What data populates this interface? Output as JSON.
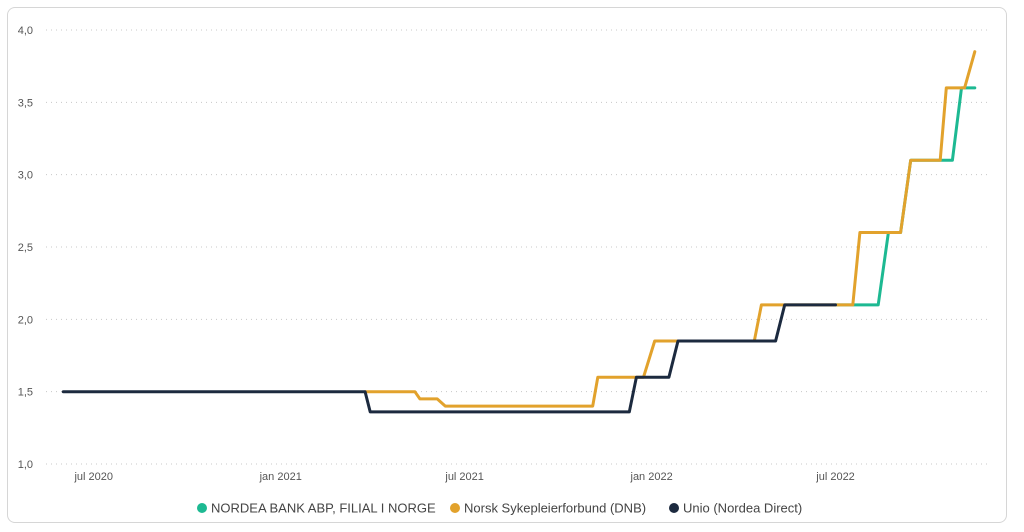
{
  "chart_data": {
    "type": "line",
    "title": "",
    "xlabel": "",
    "ylabel": "",
    "ylim": [
      1.0,
      4.0
    ],
    "yticks": [
      "1,0",
      "1,5",
      "2,0",
      "2,5",
      "3,0",
      "3,5",
      "4,0"
    ],
    "xticks": [
      "jul 2020",
      "jan 2021",
      "jul 2021",
      "jan 2022",
      "jul 2022"
    ],
    "xlim": [
      "2020-05-15",
      "2022-11-30"
    ],
    "grid": true,
    "legend_position": "bottom",
    "series": [
      {
        "name": "NORDEA BANK ABP, FILIAL I NORGE",
        "color": "#1db992",
        "points": [
          [
            "2022-07-01",
            2.1
          ],
          [
            "2022-08-12",
            2.1
          ],
          [
            "2022-08-22",
            2.6
          ],
          [
            "2022-09-03",
            2.6
          ],
          [
            "2022-09-13",
            3.1
          ],
          [
            "2022-10-24",
            3.1
          ],
          [
            "2022-11-02",
            3.6
          ],
          [
            "2022-11-15",
            3.6
          ]
        ]
      },
      {
        "name": "Norsk Sykepleierforbund (DNB)",
        "color": "#e2a22c",
        "points": [
          [
            "2021-03-25",
            1.5
          ],
          [
            "2021-05-13",
            1.5
          ],
          [
            "2021-05-18",
            1.45
          ],
          [
            "2021-06-04",
            1.45
          ],
          [
            "2021-06-12",
            1.4
          ],
          [
            "2021-11-04",
            1.4
          ],
          [
            "2021-11-09",
            1.6
          ],
          [
            "2021-12-24",
            1.6
          ],
          [
            "2022-01-04",
            1.85
          ],
          [
            "2022-04-12",
            1.85
          ],
          [
            "2022-04-19",
            2.1
          ],
          [
            "2022-05-03",
            2.1
          ],
          [
            "2022-07-01",
            2.1
          ],
          [
            "2022-07-18",
            2.1
          ],
          [
            "2022-07-25",
            2.6
          ],
          [
            "2022-09-03",
            2.6
          ],
          [
            "2022-09-13",
            3.1
          ],
          [
            "2022-10-12",
            3.1
          ],
          [
            "2022-10-18",
            3.6
          ],
          [
            "2022-11-05",
            3.6
          ],
          [
            "2022-11-15",
            3.85
          ]
        ]
      },
      {
        "name": "Unio (Nordea Direct)",
        "color": "#1c2a3f",
        "points": [
          [
            "2020-06-01",
            1.5
          ],
          [
            "2021-03-25",
            1.5
          ],
          [
            "2021-03-30",
            1.36
          ],
          [
            "2021-12-10",
            1.36
          ],
          [
            "2021-12-17",
            1.6
          ],
          [
            "2022-01-18",
            1.6
          ],
          [
            "2022-01-27",
            1.85
          ],
          [
            "2022-05-03",
            1.85
          ],
          [
            "2022-05-12",
            2.1
          ],
          [
            "2022-07-01",
            2.1
          ]
        ]
      }
    ]
  }
}
